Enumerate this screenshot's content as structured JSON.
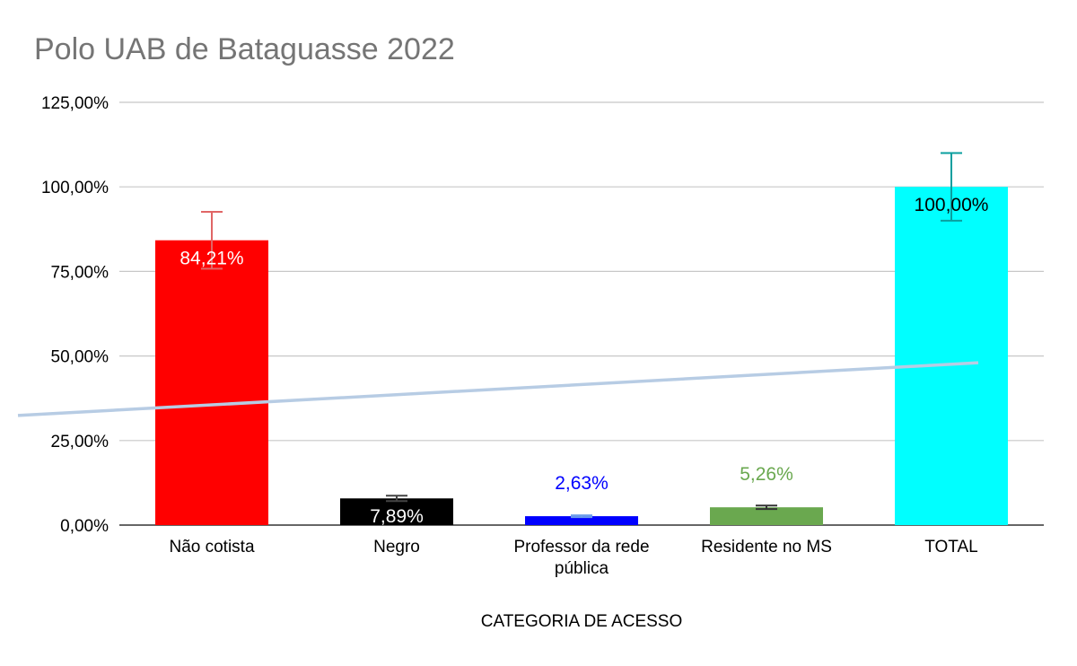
{
  "chart_data": {
    "type": "bar",
    "title": "Polo UAB de Bataguasse 2022",
    "xlabel": "CATEGORIA DE ACESSO",
    "ylabel": "",
    "ylim": [
      0,
      125
    ],
    "yticks": [
      0,
      25,
      50,
      75,
      100,
      125
    ],
    "ytick_labels": [
      "0,00%",
      "25,00%",
      "50,00%",
      "75,00%",
      "100,00%",
      "125,00%"
    ],
    "grid": true,
    "legend": "none",
    "categories": [
      {
        "label_lines": [
          "Não cotista"
        ]
      },
      {
        "label_lines": [
          "Negro"
        ]
      },
      {
        "label_lines": [
          "Professor da rede",
          "pública"
        ]
      },
      {
        "label_lines": [
          "Residente no MS"
        ]
      },
      {
        "label_lines": [
          "TOTAL"
        ]
      }
    ],
    "series": [
      {
        "values": [
          84.21,
          7.89,
          2.63,
          5.26,
          100.0
        ],
        "data_labels": [
          "84,21%",
          "7,89%",
          "2,63%",
          "5,26%",
          "100,00%"
        ],
        "colors": [
          "#ff0000",
          "#000000",
          "#0000ff",
          "#6aa84f",
          "#00ffff"
        ],
        "label_colors": [
          "#ffffff",
          "#ffffff",
          "#0000ff",
          "#6aa84f",
          "#000000"
        ],
        "label_position": [
          "inside",
          "inside",
          "above",
          "above",
          "inside"
        ],
        "error_plus_minus_pct": 10,
        "error_colors": [
          "#e06666",
          "#444444",
          "#6d9eeb",
          "#333333",
          "#0a9f9f"
        ]
      }
    ],
    "trendline": {
      "type": "linear",
      "color": "#b7cce4",
      "start": 32.4,
      "end": 48.0
    }
  }
}
